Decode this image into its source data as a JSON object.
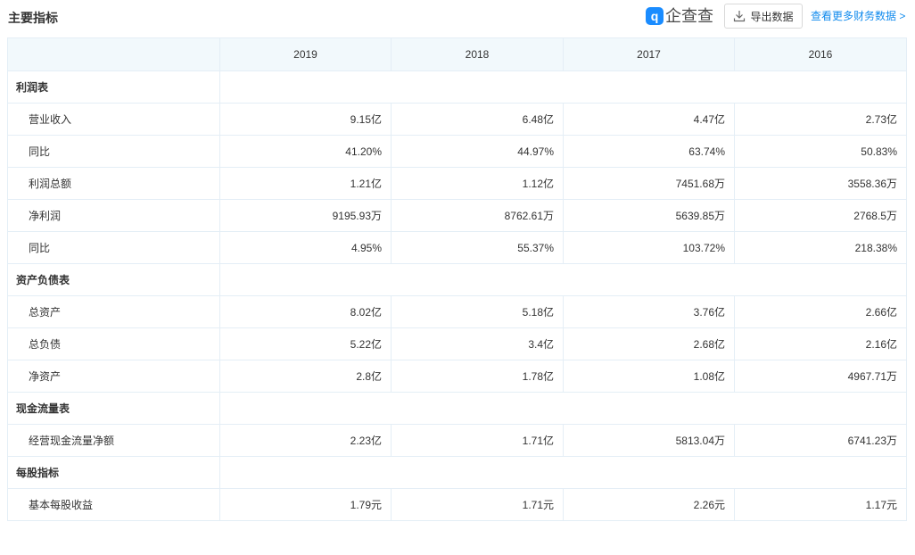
{
  "header": {
    "title": "主要指标",
    "brand_icon_glyph": "q",
    "brand_name": "企查查",
    "export_label": "导出数据",
    "more_link": "查看更多财务数据 >"
  },
  "colors": {
    "link": "#128bed",
    "header_bg": "#f2f9fc",
    "border": "#e4eef6",
    "brand": "#1a8cff"
  },
  "table": {
    "years": [
      "2019",
      "2018",
      "2017",
      "2016"
    ],
    "sections": [
      {
        "name": "利润表",
        "rows": [
          {
            "label": "营业收入",
            "values": [
              "9.15亿",
              "6.48亿",
              "4.47亿",
              "2.73亿"
            ]
          },
          {
            "label": "同比",
            "values": [
              "41.20%",
              "44.97%",
              "63.74%",
              "50.83%"
            ]
          },
          {
            "label": "利润总额",
            "values": [
              "1.21亿",
              "1.12亿",
              "7451.68万",
              "3558.36万"
            ]
          },
          {
            "label": "净利润",
            "values": [
              "9195.93万",
              "8762.61万",
              "5639.85万",
              "2768.5万"
            ]
          },
          {
            "label": "同比",
            "values": [
              "4.95%",
              "55.37%",
              "103.72%",
              "218.38%"
            ]
          }
        ]
      },
      {
        "name": "资产负债表",
        "rows": [
          {
            "label": "总资产",
            "values": [
              "8.02亿",
              "5.18亿",
              "3.76亿",
              "2.66亿"
            ]
          },
          {
            "label": "总负债",
            "values": [
              "5.22亿",
              "3.4亿",
              "2.68亿",
              "2.16亿"
            ]
          },
          {
            "label": "净资产",
            "values": [
              "2.8亿",
              "1.78亿",
              "1.08亿",
              "4967.71万"
            ]
          }
        ]
      },
      {
        "name": "现金流量表",
        "rows": [
          {
            "label": "经营现金流量净额",
            "values": [
              "2.23亿",
              "1.71亿",
              "5813.04万",
              "6741.23万"
            ]
          }
        ]
      },
      {
        "name": "每股指标",
        "rows": [
          {
            "label": "基本每股收益",
            "values": [
              "1.79元",
              "1.71元",
              "2.26元",
              "1.17元"
            ]
          }
        ]
      }
    ]
  }
}
